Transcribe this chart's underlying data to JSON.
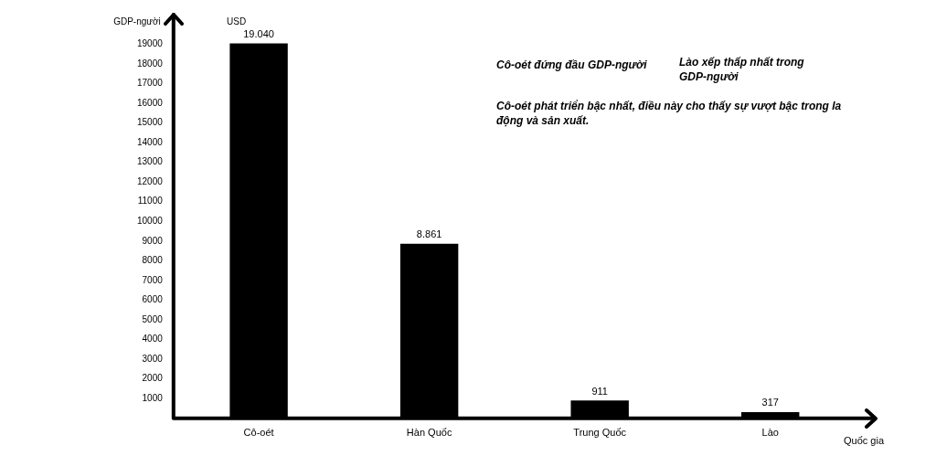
{
  "chart_data": {
    "type": "bar",
    "xlabel": "Quốc gia",
    "ylabel": "GDP-người",
    "categories": [
      "Cô-oét",
      "Hàn Quốc",
      "Trung Quốc",
      "Lào"
    ],
    "values": [
      19040,
      8861,
      911,
      317
    ],
    "value_labels": [
      "19.040",
      "8.861",
      "911",
      "317"
    ],
    "color": "#000000",
    "ylim": [
      0,
      20500
    ],
    "yticks": [
      1000,
      2000,
      3000,
      4000,
      5000,
      6000,
      7000,
      8000,
      9000,
      10000,
      11000,
      12000,
      13000,
      14000,
      15000,
      16000,
      17000,
      18000,
      19000
    ],
    "grid": false,
    "legend": false,
    "annotations": [
      "USD",
      "Cô-oét đứng đầu GDP-người",
      "Lào xếp thấp nhất trong GDP-người",
      "Cô-oét phát triển bậc nhất, điều này cho thấy sự vượt bậc trong la động và sản xuất."
    ]
  }
}
